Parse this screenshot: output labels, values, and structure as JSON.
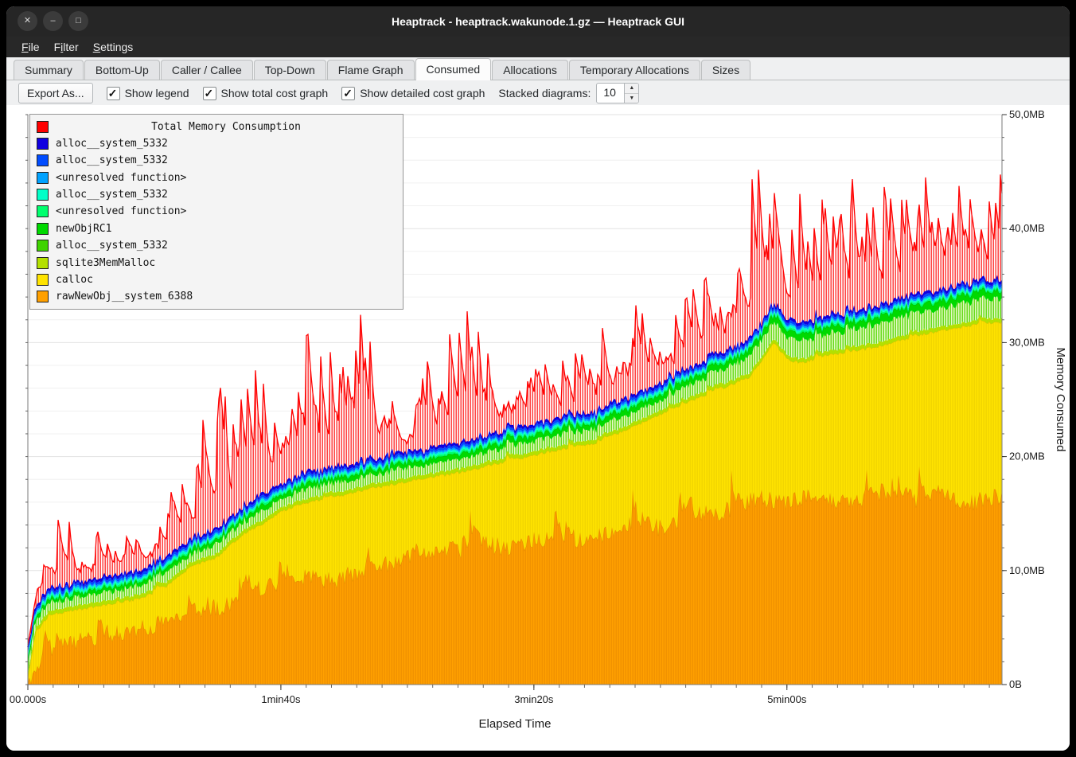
{
  "window": {
    "title": "Heaptrack - heaptrack.wakunode.1.gz — Heaptrack GUI"
  },
  "icons": {
    "close": "✕",
    "minimize": "–",
    "maximize": "□",
    "check": "✓",
    "spin_up": "▲",
    "spin_down": "▼"
  },
  "menu": {
    "items": [
      {
        "label": "File",
        "pre": "",
        "key": "F",
        "post": "ile"
      },
      {
        "label": "Filter",
        "pre": "F",
        "key": "i",
        "post": "lter"
      },
      {
        "label": "Settings",
        "pre": "",
        "key": "S",
        "post": "ettings"
      }
    ]
  },
  "tabs": {
    "items": [
      {
        "label": "Summary"
      },
      {
        "label": "Bottom-Up"
      },
      {
        "label": "Caller / Callee"
      },
      {
        "label": "Top-Down"
      },
      {
        "label": "Flame Graph"
      },
      {
        "label": "Consumed",
        "active": true
      },
      {
        "label": "Allocations"
      },
      {
        "label": "Temporary Allocations"
      },
      {
        "label": "Sizes"
      }
    ]
  },
  "toolbar": {
    "export_button": "Export As...",
    "checkboxes": [
      {
        "label": "Show legend",
        "checked": true
      },
      {
        "label": "Show total cost graph",
        "checked": true
      },
      {
        "label": "Show detailed cost graph",
        "checked": true
      }
    ],
    "stacked_label": "Stacked diagrams:",
    "stacked_value": "10"
  },
  "chart_data": {
    "type": "area",
    "stacked": true,
    "x_max": 385,
    "y_max": 50,
    "xlabel": "Elapsed Time",
    "ylabel": "Memory Consumed",
    "x_ticks": [
      {
        "t": 0,
        "label": "00.000s"
      },
      {
        "t": 100,
        "label": "1min40s"
      },
      {
        "t": 200,
        "label": "3min20s"
      },
      {
        "t": 300,
        "label": "5min00s"
      }
    ],
    "y_ticks": [
      {
        "v": 0,
        "label": "0B"
      },
      {
        "v": 10,
        "label": "10,0MB"
      },
      {
        "v": 20,
        "label": "20,0MB"
      },
      {
        "v": 30,
        "label": "30,0MB"
      },
      {
        "v": 40,
        "label": "40,0MB"
      },
      {
        "v": 50,
        "label": "50,0MB"
      }
    ],
    "legend": {
      "title": "Total Memory Consumption",
      "title_color": "#ff0000",
      "entries": [
        {
          "label": "alloc__system_5332",
          "color": "#1000e0"
        },
        {
          "label": "alloc__system_5332",
          "color": "#004cff"
        },
        {
          "label": "<unresolved function>",
          "color": "#00a2ff"
        },
        {
          "label": "alloc__system_5332",
          "color": "#00ffc8"
        },
        {
          "label": "<unresolved function>",
          "color": "#00ff6e"
        },
        {
          "label": "newObjRC1",
          "color": "#00d900"
        },
        {
          "label": "alloc__system_5332",
          "color": "#3fd400"
        },
        {
          "label": "sqlite3MemMalloc",
          "color": "#b4e000"
        },
        {
          "label": "calloc",
          "color": "#ffe300"
        },
        {
          "label": "rawNewObj__system_6388",
          "color": "#ffa000"
        }
      ]
    },
    "stack": [
      {
        "name": "rawNewObj__system_6388",
        "fill": "#ffa000",
        "hatch": "#ef9000",
        "line": "#e68800",
        "lw": 1,
        "noise": 0.8,
        "spike": 2.8,
        "spike_p": 0.07,
        "seed": 11,
        "keys": [
          [
            0,
            0.15
          ],
          [
            3,
            1.6
          ],
          [
            8,
            2.8
          ],
          [
            20,
            3.8
          ],
          [
            30,
            4.2
          ],
          [
            40,
            4.6
          ],
          [
            50,
            5.2
          ],
          [
            60,
            5.6
          ],
          [
            70,
            6.2
          ],
          [
            80,
            7.2
          ],
          [
            90,
            8.0
          ],
          [
            100,
            9.0
          ],
          [
            110,
            9.4
          ],
          [
            120,
            9.0
          ],
          [
            130,
            10.0
          ],
          [
            140,
            10.4
          ],
          [
            150,
            11.0
          ],
          [
            160,
            11.4
          ],
          [
            170,
            11.8
          ],
          [
            180,
            12.2
          ],
          [
            190,
            12.0
          ],
          [
            200,
            12.6
          ],
          [
            210,
            13.0
          ],
          [
            220,
            12.6
          ],
          [
            230,
            13.4
          ],
          [
            240,
            14.2
          ],
          [
            250,
            13.8
          ],
          [
            260,
            14.6
          ],
          [
            270,
            15.0
          ],
          [
            280,
            15.6
          ],
          [
            290,
            16.4
          ],
          [
            300,
            15.8
          ],
          [
            310,
            16.6
          ],
          [
            320,
            15.8
          ],
          [
            330,
            16.4
          ],
          [
            340,
            17.0
          ],
          [
            350,
            16.2
          ],
          [
            360,
            16.8
          ],
          [
            370,
            15.8
          ],
          [
            380,
            16.4
          ],
          [
            385,
            16.6
          ]
        ]
      },
      {
        "name": "calloc",
        "fill": "#ffe300",
        "hatch": "#f0d400",
        "line": "#dcc200",
        "lw": 1,
        "noise": 0.12,
        "spike": 0.6,
        "spike_p": 0.04,
        "seed": 22,
        "keys": [
          [
            0,
            0.6
          ],
          [
            3,
            4.6
          ],
          [
            8,
            6.0
          ],
          [
            15,
            6.4
          ],
          [
            25,
            6.8
          ],
          [
            35,
            7.1
          ],
          [
            45,
            7.6
          ],
          [
            55,
            8.6
          ],
          [
            60,
            9.6
          ],
          [
            65,
            10.4
          ],
          [
            75,
            11.2
          ],
          [
            85,
            13.2
          ],
          [
            95,
            14.4
          ],
          [
            100,
            15.2
          ],
          [
            105,
            15.6
          ],
          [
            115,
            16.2
          ],
          [
            125,
            16.6
          ],
          [
            135,
            17.2
          ],
          [
            145,
            17.6
          ],
          [
            155,
            18.0
          ],
          [
            165,
            18.4
          ],
          [
            175,
            18.8
          ],
          [
            185,
            19.4
          ],
          [
            195,
            19.8
          ],
          [
            205,
            20.4
          ],
          [
            215,
            20.8
          ],
          [
            225,
            21.2
          ],
          [
            235,
            22.2
          ],
          [
            245,
            23.2
          ],
          [
            255,
            24.2
          ],
          [
            260,
            24.6
          ],
          [
            265,
            25.2
          ],
          [
            275,
            26.0
          ],
          [
            285,
            27.0
          ],
          [
            290,
            28.4
          ],
          [
            295,
            30.0
          ],
          [
            300,
            28.6
          ],
          [
            305,
            28.2
          ],
          [
            315,
            28.8
          ],
          [
            325,
            29.2
          ],
          [
            335,
            29.6
          ],
          [
            345,
            30.2
          ],
          [
            355,
            30.8
          ],
          [
            365,
            31.2
          ],
          [
            375,
            31.6
          ],
          [
            385,
            31.8
          ]
        ]
      },
      {
        "name": "sqlite3MemMalloc",
        "fill": "#b4e000",
        "noise": 0.05,
        "seed": 33,
        "delta": 0.35
      },
      {
        "name": "alloc__system_5332",
        "fill": "#e6fbc8",
        "hatch": "#52d400",
        "noise": 0.3,
        "seed": 44,
        "delta_keys": [
          [
            0,
            0.7
          ],
          [
            250,
            0.9
          ],
          [
            290,
            1.5
          ],
          [
            385,
            1.7
          ]
        ]
      },
      {
        "name": "newObjRC1",
        "fill": "#00d900",
        "line": "#00b600",
        "lw": 1,
        "noise": 0.12,
        "seed": 55,
        "delta_keys": [
          [
            0,
            0.35
          ],
          [
            290,
            0.6
          ],
          [
            385,
            0.7
          ]
        ]
      },
      {
        "name": "<unresolved function>",
        "fill": "#00ff6e",
        "noise": 0.05,
        "seed": 66,
        "delta": 0.18
      },
      {
        "name": "alloc__system_5332",
        "fill": "#00ffc8",
        "noise": 0.05,
        "seed": 67,
        "delta": 0.18
      },
      {
        "name": "<unresolved function>",
        "fill": "#00a2ff",
        "noise": 0.04,
        "seed": 68,
        "delta": 0.14
      },
      {
        "name": "alloc__system_5332",
        "fill": "#004cff",
        "noise": 0.05,
        "seed": 69,
        "delta": 0.22
      },
      {
        "name": "alloc__system_5332",
        "fill": "#1000e0",
        "line": "#0000dd",
        "lw": 1.7,
        "noise": 0.06,
        "seed": 70,
        "delta": 0.26
      }
    ],
    "total": {
      "name": "Total Memory Consumption",
      "hatch_bg": "#ffffff",
      "hatch": "#ff3030",
      "line": "#ff0000",
      "lw": 1.3,
      "seed": 77,
      "env": [
        [
          0,
          4
        ],
        [
          4,
          9
        ],
        [
          8,
          12
        ],
        [
          12,
          16
        ],
        [
          16,
          18
        ],
        [
          20,
          12
        ],
        [
          28,
          14
        ],
        [
          36,
          13
        ],
        [
          44,
          18
        ],
        [
          52,
          15
        ],
        [
          60,
          20
        ],
        [
          68,
          23
        ],
        [
          74,
          30
        ],
        [
          77,
          38
        ],
        [
          80,
          24
        ],
        [
          86,
          26
        ],
        [
          90,
          29
        ],
        [
          96,
          24
        ],
        [
          102,
          26
        ],
        [
          108,
          31
        ],
        [
          114,
          36
        ],
        [
          120,
          31
        ],
        [
          126,
          28
        ],
        [
          132,
          34
        ],
        [
          138,
          28
        ],
        [
          144,
          26
        ],
        [
          150,
          24
        ],
        [
          156,
          29
        ],
        [
          162,
          27
        ],
        [
          168,
          32
        ],
        [
          174,
          35
        ],
        [
          180,
          30
        ],
        [
          186,
          27
        ],
        [
          192,
          25
        ],
        [
          198,
          27
        ],
        [
          204,
          29
        ],
        [
          210,
          31
        ],
        [
          216,
          29
        ],
        [
          222,
          31
        ],
        [
          228,
          33
        ],
        [
          234,
          31
        ],
        [
          240,
          34
        ],
        [
          246,
          31
        ],
        [
          252,
          33
        ],
        [
          258,
          34
        ],
        [
          264,
          36
        ],
        [
          270,
          36
        ],
        [
          276,
          33
        ],
        [
          282,
          40
        ],
        [
          286,
          45
        ],
        [
          290,
          46
        ],
        [
          294,
          43
        ],
        [
          298,
          47
        ],
        [
          302,
          46
        ],
        [
          306,
          44
        ],
        [
          310,
          44
        ],
        [
          316,
          42
        ],
        [
          322,
          45
        ],
        [
          328,
          44
        ],
        [
          334,
          46
        ],
        [
          340,
          44
        ],
        [
          346,
          43
        ],
        [
          352,
          45
        ],
        [
          358,
          44
        ],
        [
          364,
          46
        ],
        [
          370,
          44
        ],
        [
          376,
          45
        ],
        [
          382,
          44
        ],
        [
          385,
          45
        ]
      ]
    }
  }
}
